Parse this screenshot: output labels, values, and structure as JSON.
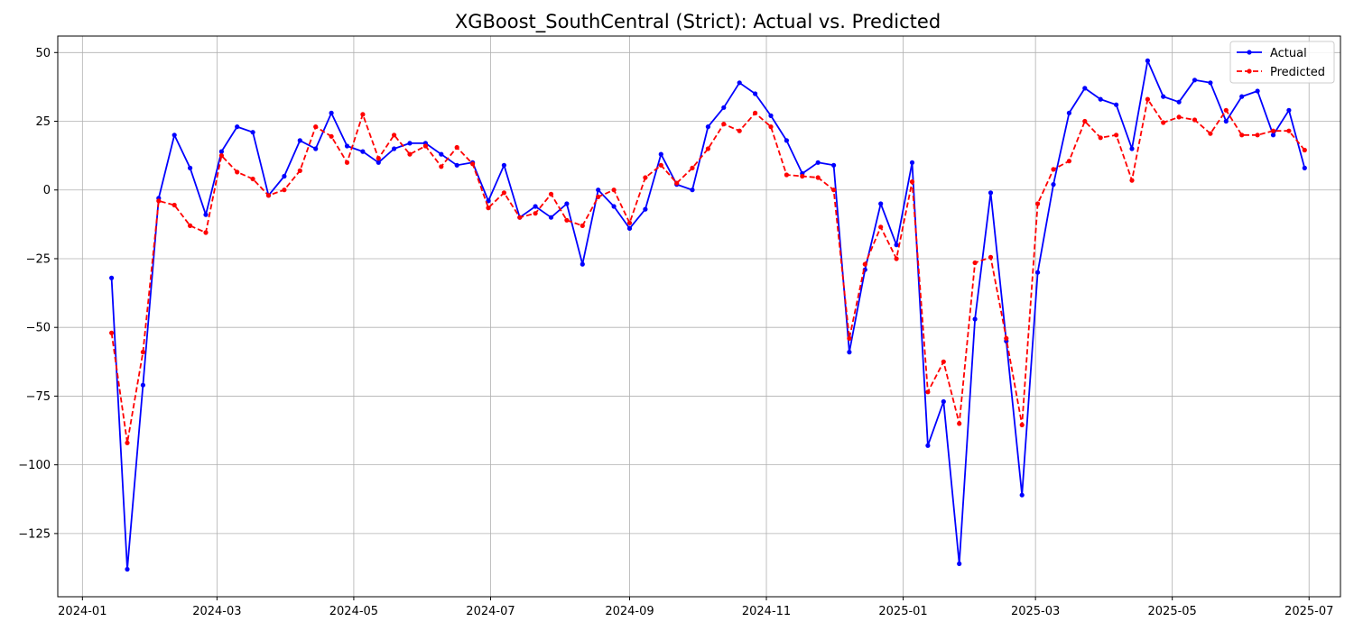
{
  "chart_data": {
    "type": "line",
    "title": "XGBoost_SouthCentral (Strict): Actual vs. Predicted",
    "xlabel": "",
    "ylabel": "",
    "xlim": [
      "2023-12-21",
      "2025-07-15"
    ],
    "ylim": [
      -148,
      56
    ],
    "grid": true,
    "legend": "top-right",
    "x_ticks": [
      "2024-01",
      "2024-03",
      "2024-05",
      "2024-07",
      "2024-09",
      "2024-11",
      "2025-01",
      "2025-03",
      "2025-05",
      "2025-07"
    ],
    "y_ticks": [
      50,
      25,
      0,
      -25,
      -50,
      -75,
      -100,
      -125
    ],
    "y_tick_labels": [
      "50",
      "25",
      "0",
      "−25",
      "−50",
      "−75",
      "−100",
      "−125"
    ],
    "x": [
      "2024-01-14",
      "2024-01-21",
      "2024-01-28",
      "2024-02-04",
      "2024-02-11",
      "2024-02-18",
      "2024-02-25",
      "2024-03-03",
      "2024-03-10",
      "2024-03-17",
      "2024-03-24",
      "2024-03-31",
      "2024-04-07",
      "2024-04-14",
      "2024-04-21",
      "2024-04-28",
      "2024-05-05",
      "2024-05-12",
      "2024-05-19",
      "2024-05-26",
      "2024-06-02",
      "2024-06-09",
      "2024-06-16",
      "2024-06-23",
      "2024-06-30",
      "2024-07-07",
      "2024-07-14",
      "2024-07-21",
      "2024-07-28",
      "2024-08-04",
      "2024-08-11",
      "2024-08-18",
      "2024-08-25",
      "2024-09-01",
      "2024-09-08",
      "2024-09-15",
      "2024-09-22",
      "2024-09-29",
      "2024-10-06",
      "2024-10-13",
      "2024-10-20",
      "2024-10-27",
      "2024-11-03",
      "2024-11-10",
      "2024-11-17",
      "2024-11-24",
      "2024-12-01",
      "2024-12-08",
      "2024-12-15",
      "2024-12-22",
      "2024-12-29",
      "2025-01-05",
      "2025-01-12",
      "2025-01-19",
      "2025-01-26",
      "2025-02-02",
      "2025-02-09",
      "2025-02-16",
      "2025-02-23",
      "2025-03-02",
      "2025-03-09",
      "2025-03-16",
      "2025-03-23",
      "2025-03-30",
      "2025-04-06",
      "2025-04-13",
      "2025-04-20",
      "2025-04-27",
      "2025-05-04",
      "2025-05-11",
      "2025-05-18",
      "2025-05-25",
      "2025-06-01",
      "2025-06-08",
      "2025-06-15",
      "2025-06-22",
      "2025-06-29"
    ],
    "series": [
      {
        "name": "Actual",
        "color": "#0000ff",
        "style": "solid",
        "values": [
          -32,
          -138,
          -71,
          -3,
          20,
          8,
          -9,
          14,
          23,
          21,
          -2,
          5,
          18,
          15,
          28,
          16,
          14,
          10,
          15,
          17,
          17,
          13,
          9,
          10,
          -4,
          9,
          -10,
          -6,
          -10,
          -5,
          -27,
          0,
          -6,
          -14,
          -7,
          13,
          2,
          0,
          23,
          30,
          39,
          35,
          27,
          18,
          6,
          10,
          9,
          -59,
          -29,
          -5,
          -20,
          10,
          -93,
          -77,
          -136,
          -47,
          -1,
          -55,
          -111,
          -30,
          2,
          28,
          37,
          33,
          31,
          15,
          47,
          34,
          32,
          40,
          39,
          25,
          34,
          36,
          20,
          29,
          8
        ]
      },
      {
        "name": "Predicted",
        "color": "#ff0000",
        "style": "dashed",
        "values": [
          -52,
          -92,
          -59,
          -4,
          -5.5,
          -13,
          -15.5,
          12.5,
          6.5,
          4,
          -2,
          0,
          7,
          23,
          19.5,
          10,
          27.5,
          11.5,
          20,
          13,
          16,
          8.5,
          15.5,
          9.5,
          -6.5,
          -1,
          -10,
          -8.5,
          -1.5,
          -11,
          -13,
          -2.5,
          0,
          -12,
          4.5,
          9,
          2.5,
          8,
          15,
          24,
          21.5,
          28,
          23,
          5.5,
          5,
          4.5,
          0,
          -54,
          -27,
          -13.5,
          -25,
          3,
          -73.5,
          -62.5,
          -85,
          -26.5,
          -24.5,
          -54,
          -85.5,
          -5,
          7.5,
          10.5,
          25,
          19,
          20,
          3.5,
          33,
          24.5,
          26.5,
          25.5,
          20.5,
          29,
          20,
          20,
          21.5,
          21.5,
          14.5
        ]
      }
    ]
  }
}
